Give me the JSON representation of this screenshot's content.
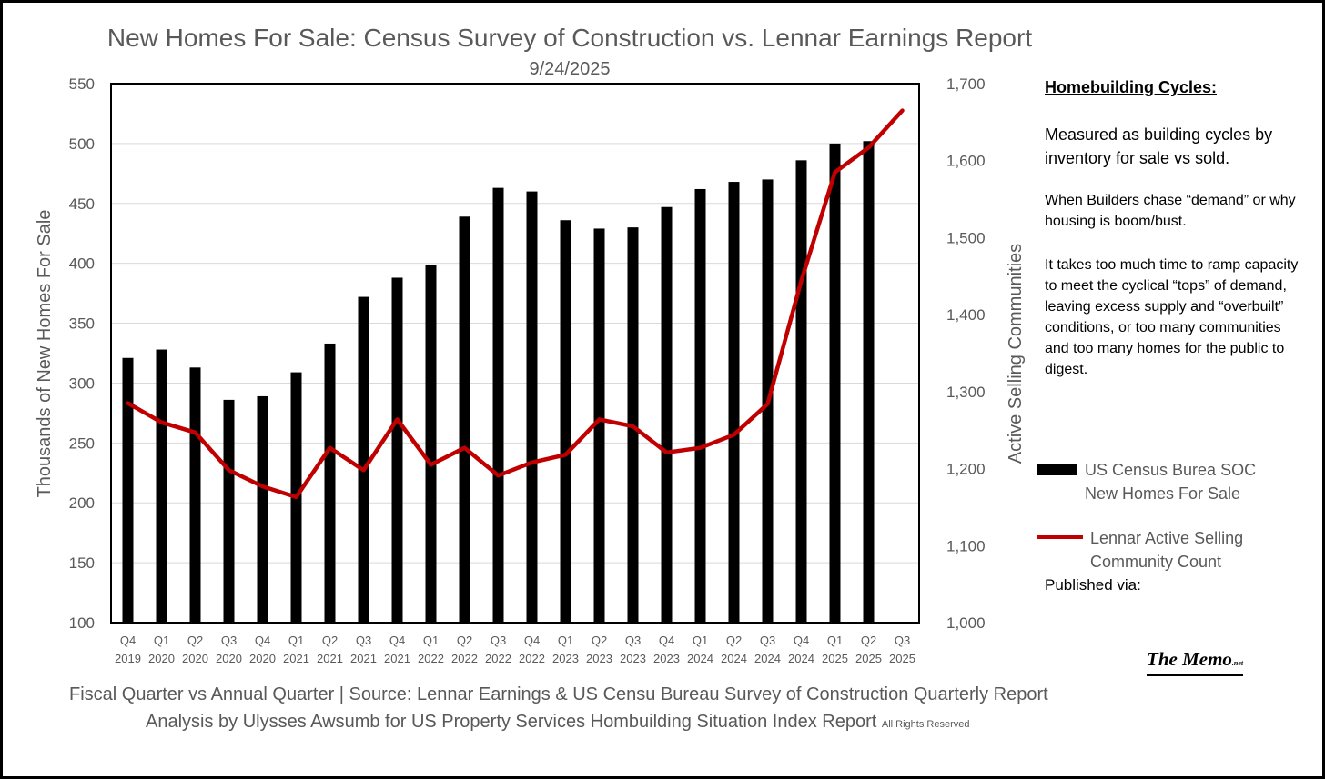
{
  "chart_data": {
    "type": "bar",
    "title": "New Homes For Sale: Census Survey of Construction vs. Lennar Earnings Report",
    "subtitle": "9/24/2025",
    "ylabel": "Thousands of New Homes For Sale",
    "y2label": "Active Selling Communities",
    "ylim": [
      100,
      550
    ],
    "y2lim": [
      1000,
      1700
    ],
    "yticks": [
      "100",
      "150",
      "200",
      "250",
      "300",
      "350",
      "400",
      "450",
      "500",
      "550"
    ],
    "y2ticks": [
      "1,000",
      "1,100",
      "1,200",
      "1,300",
      "1,400",
      "1,500",
      "1,600",
      "1,700"
    ],
    "grid": true,
    "categories": [
      [
        "Q4",
        "2019"
      ],
      [
        "Q1",
        "2020"
      ],
      [
        "Q2",
        "2020"
      ],
      [
        "Q3",
        "2020"
      ],
      [
        "Q4",
        "2020"
      ],
      [
        "Q1",
        "2021"
      ],
      [
        "Q2",
        "2021"
      ],
      [
        "Q3",
        "2021"
      ],
      [
        "Q4",
        "2021"
      ],
      [
        "Q1",
        "2022"
      ],
      [
        "Q2",
        "2022"
      ],
      [
        "Q3",
        "2022"
      ],
      [
        "Q4",
        "2022"
      ],
      [
        "Q1",
        "2023"
      ],
      [
        "Q2",
        "2023"
      ],
      [
        "Q3",
        "2023"
      ],
      [
        "Q4",
        "2023"
      ],
      [
        "Q1",
        "2024"
      ],
      [
        "Q2",
        "2024"
      ],
      [
        "Q3",
        "2024"
      ],
      [
        "Q4",
        "2024"
      ],
      [
        "Q1",
        "2025"
      ],
      [
        "Q2",
        "2025"
      ],
      [
        "Q3",
        "2025"
      ]
    ],
    "series": [
      {
        "name": "US Census Burea SOC New Homes For Sale",
        "type": "bar",
        "axis": "left",
        "color": "#000000",
        "values": [
          321,
          328,
          313,
          286,
          289,
          309,
          333,
          372,
          388,
          399,
          439,
          463,
          460,
          436,
          429,
          430,
          447,
          462,
          468,
          470,
          486,
          500,
          502,
          null
        ]
      },
      {
        "name": "Lennar Active Selling Community Count",
        "type": "line",
        "axis": "right",
        "color": "#c00000",
        "values": [
          1285,
          1260,
          1247,
          1198,
          1177,
          1163,
          1227,
          1198,
          1264,
          1205,
          1227,
          1191,
          1208,
          1218,
          1264,
          1255,
          1221,
          1227,
          1244,
          1284,
          1444,
          1585,
          1617,
          1665
        ]
      }
    ]
  },
  "notes": {
    "heading": "Homebuilding Cycles:",
    "p1": "Measured as building cycles by inventory for sale vs sold.",
    "p2": "When Builders chase “demand” or why housing is boom/bust.",
    "p3": "It takes too much time to ramp capacity to meet the cyclical “tops” of demand, leaving excess supply and “overbuilt” conditions, or too many communities and too many homes for the public to digest."
  },
  "published": "Published via:",
  "logo": {
    "name": "The Memo",
    "suffix": ".net"
  },
  "footer": {
    "line1": "Fiscal Quarter vs Annual Quarter |  Source: Lennar Earnings & US Censu Bureau Survey of Construction Quarterly Report",
    "line2": "Analysis by Ulysses Awsumb for US Property Services Hombuilding Situation Index Report",
    "rights": "All Rights Reserved"
  }
}
